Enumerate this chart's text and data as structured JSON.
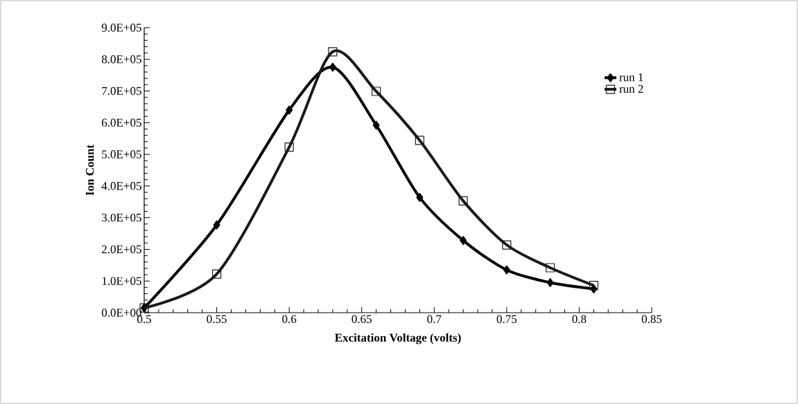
{
  "chart_data": {
    "type": "line",
    "xlabel": "Excitation Voltage (volts)",
    "ylabel": "Ion Count",
    "xlim": [
      0.5,
      0.85
    ],
    "ylim": [
      0,
      900000
    ],
    "xticks": [
      0.5,
      0.55,
      0.6,
      0.65,
      0.7,
      0.75,
      0.8,
      0.85
    ],
    "yticks": [
      {
        "value": 0,
        "label": "0.0E+00"
      },
      {
        "value": 100000,
        "label": "1.0E+05"
      },
      {
        "value": 200000,
        "label": "2.0E+05"
      },
      {
        "value": 300000,
        "label": "3.0E+05"
      },
      {
        "value": 400000,
        "label": "4.0E+05"
      },
      {
        "value": 500000,
        "label": "5.0E+05"
      },
      {
        "value": 600000,
        "label": "6.0E+05"
      },
      {
        "value": 700000,
        "label": "7.0E+05"
      },
      {
        "value": 800000,
        "label": "8.0E+05"
      },
      {
        "value": 900000,
        "label": "9.0E+05"
      }
    ],
    "x": [
      0.5,
      0.55,
      0.6,
      0.63,
      0.66,
      0.69,
      0.72,
      0.75,
      0.78,
      0.81
    ],
    "grid": false,
    "legend": "right",
    "line_style": "solid",
    "series": [
      {
        "name": "run 1",
        "color": "#000000",
        "marker": "diamond",
        "values": [
          15000,
          277000,
          640000,
          775000,
          592000,
          364000,
          228000,
          135000,
          95000,
          75000
        ]
      },
      {
        "name": "run 2",
        "color": "#1a1a1a",
        "marker": "square",
        "values": [
          15000,
          122000,
          523000,
          824000,
          699000,
          544000,
          353000,
          214000,
          142000,
          86000
        ]
      }
    ]
  }
}
